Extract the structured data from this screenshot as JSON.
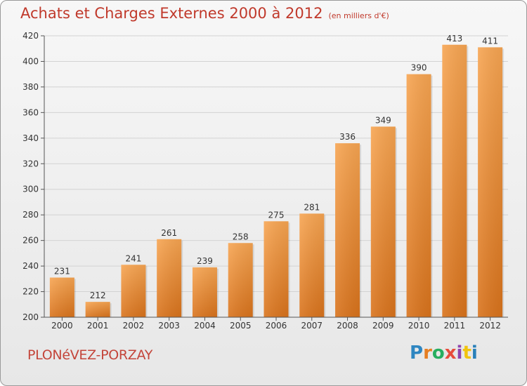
{
  "header": {
    "title": "Achats et Charges Externes 2000 à 2012",
    "unit": "(en milliers d'€)"
  },
  "footer": {
    "commune": "PLONéVEZ-PORZAY",
    "logo": "Proxiti"
  },
  "colors": {
    "bar_top": "#f7a552",
    "bar_bottom": "#d9731c",
    "title": "#c0392b"
  },
  "chart_data": {
    "type": "bar",
    "title": "Achats et Charges Externes 2000 à 2012",
    "subtitle": "(en milliers d'€)",
    "xlabel": "",
    "ylabel": "",
    "categories": [
      "2000",
      "2001",
      "2002",
      "2003",
      "2004",
      "2005",
      "2006",
      "2007",
      "2008",
      "2009",
      "2010",
      "2011",
      "2012"
    ],
    "values": [
      231,
      212,
      241,
      261,
      239,
      258,
      275,
      281,
      336,
      349,
      390,
      413,
      411
    ],
    "ylim": [
      200,
      420
    ],
    "yticks": [
      200,
      220,
      240,
      260,
      280,
      300,
      320,
      340,
      360,
      380,
      400,
      420
    ],
    "grid": true,
    "legend": "none"
  }
}
